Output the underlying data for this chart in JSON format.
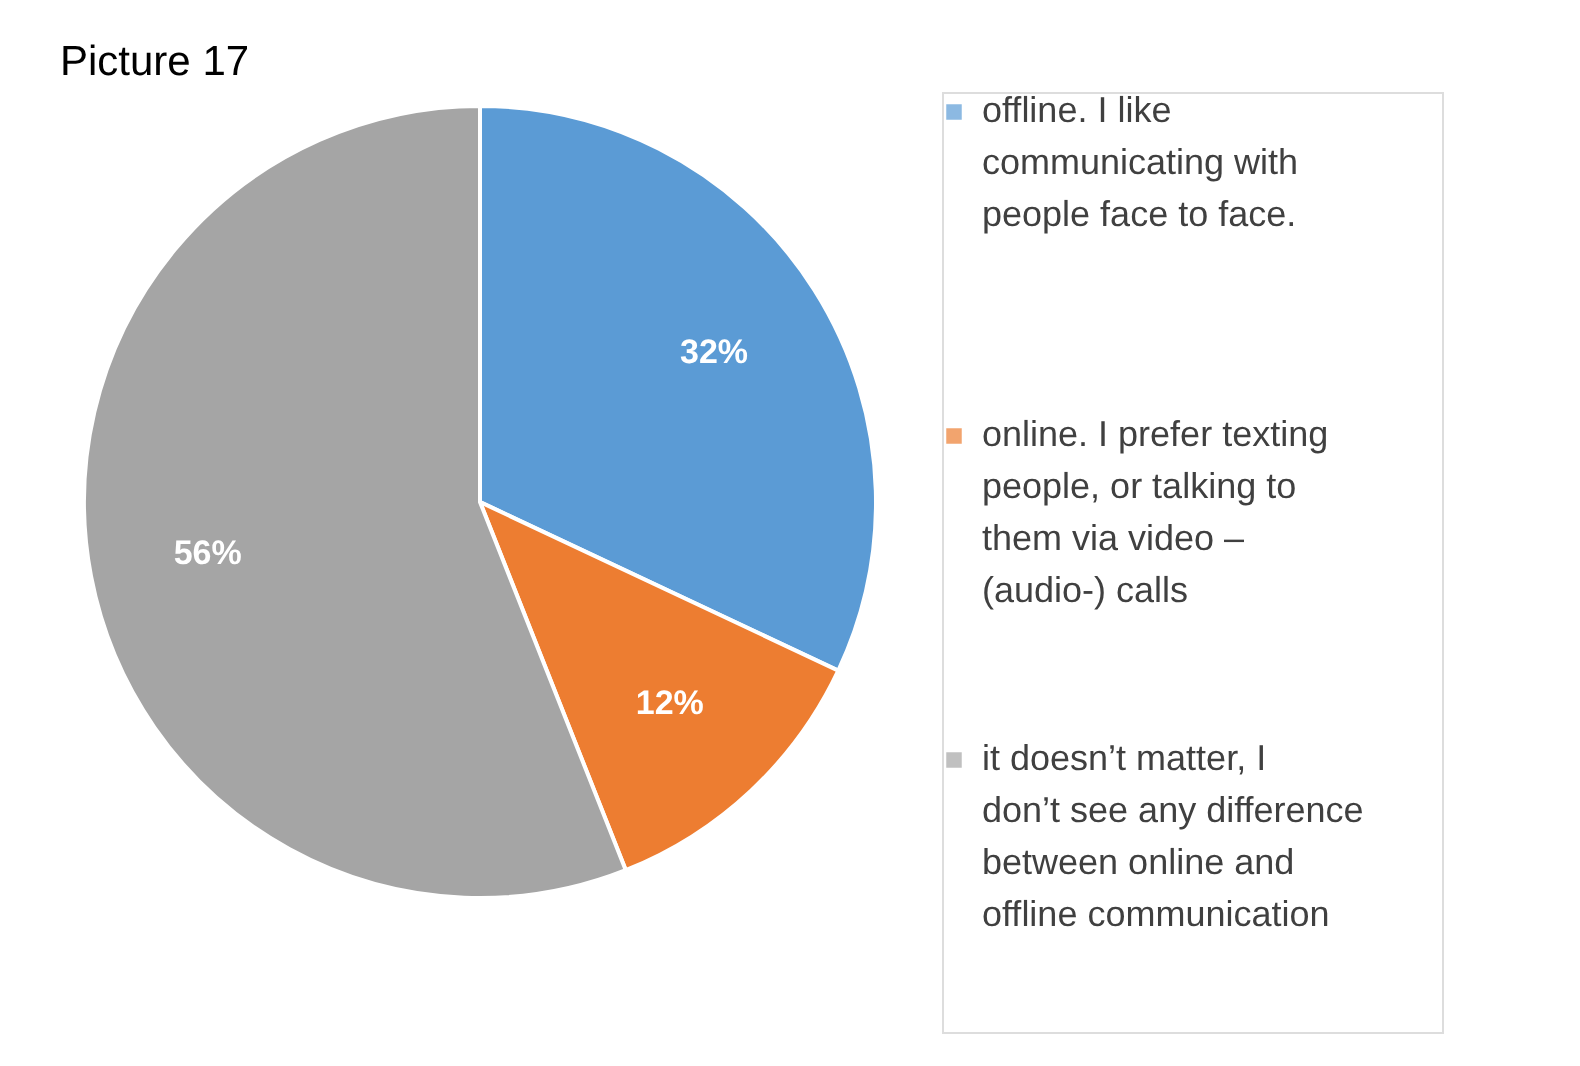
{
  "chart_data": {
    "type": "pie",
    "title": "Picture 17",
    "categories": [
      "offline. I like communicating with people face to face.",
      "online. I prefer texting people, or talking to them via video – (audio-) calls",
      "it doesn’t matter, I don’t see any difference between online and offline communication"
    ],
    "values": [
      32,
      12,
      56
    ],
    "colors": [
      "#5b9bd5",
      "#ed7d31",
      "#a5a5a5"
    ],
    "value_labels": [
      "32%",
      "12%",
      "56%"
    ],
    "legend": "right"
  }
}
